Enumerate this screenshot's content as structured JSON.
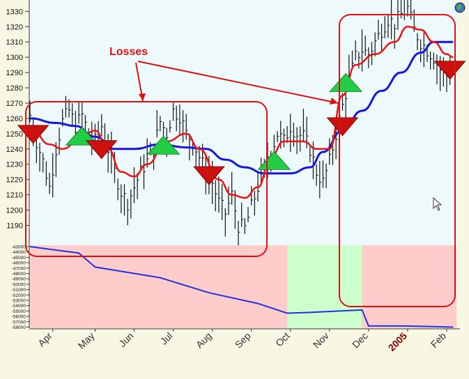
{
  "chart_data": [
    {
      "type": "line",
      "annotation": "Losses",
      "months": [
        "Apr",
        "May",
        "Jun",
        "Jul",
        "Aug",
        "Sep",
        "Oct",
        "Nov",
        "Dec",
        "2005",
        "Feb"
      ],
      "price_axis": {
        "ticks": [
          1190,
          1200,
          1210,
          1220,
          1230,
          1240,
          1250,
          1260,
          1270,
          1280,
          1290,
          1300,
          1310,
          1320,
          1330
        ],
        "range": [
          1177,
          1337
        ]
      },
      "ohlc_close_approx": [
        [
          0,
          1262
        ],
        [
          2,
          1245
        ],
        [
          4,
          1232
        ],
        [
          6,
          1215
        ],
        [
          8,
          1240
        ],
        [
          10,
          1258
        ],
        [
          12,
          1265
        ],
        [
          14,
          1255
        ],
        [
          16,
          1262
        ],
        [
          18,
          1250
        ],
        [
          20,
          1245
        ],
        [
          22,
          1255
        ],
        [
          24,
          1240
        ],
        [
          26,
          1225
        ],
        [
          28,
          1212
        ],
        [
          30,
          1205
        ],
        [
          32,
          1215
        ],
        [
          34,
          1225
        ],
        [
          36,
          1232
        ],
        [
          38,
          1240
        ],
        [
          40,
          1258
        ],
        [
          42,
          1250
        ],
        [
          44,
          1265
        ],
        [
          46,
          1262
        ],
        [
          48,
          1250
        ],
        [
          50,
          1245
        ],
        [
          52,
          1235
        ],
        [
          54,
          1225
        ],
        [
          56,
          1218
        ],
        [
          58,
          1205
        ],
        [
          60,
          1198
        ],
        [
          62,
          1210
        ],
        [
          64,
          1190
        ],
        [
          66,
          1188
        ],
        [
          68,
          1202
        ],
        [
          70,
          1215
        ],
        [
          72,
          1225
        ],
        [
          74,
          1238
        ],
        [
          76,
          1250
        ],
        [
          78,
          1245
        ],
        [
          80,
          1255
        ],
        [
          82,
          1250
        ],
        [
          84,
          1248
        ],
        [
          86,
          1240
        ],
        [
          88,
          1225
        ],
        [
          90,
          1218
        ],
        [
          92,
          1232
        ],
        [
          94,
          1250
        ],
        [
          96,
          1268
        ],
        [
          98,
          1285
        ],
        [
          100,
          1300
        ],
        [
          102,
          1305
        ],
        [
          104,
          1302
        ],
        [
          106,
          1310
        ],
        [
          108,
          1318
        ],
        [
          110,
          1325
        ],
        [
          112,
          1322
        ],
        [
          114,
          1328
        ],
        [
          116,
          1332
        ],
        [
          118,
          1318
        ],
        [
          120,
          1310
        ],
        [
          122,
          1305
        ],
        [
          124,
          1300
        ],
        [
          126,
          1292
        ],
        [
          128,
          1290
        ],
        [
          130,
          1295
        ]
      ],
      "ma_fast_red": [
        [
          0,
          1255
        ],
        [
          6,
          1243
        ],
        [
          10,
          1240
        ],
        [
          16,
          1248
        ],
        [
          20,
          1252
        ],
        [
          24,
          1240
        ],
        [
          28,
          1225
        ],
        [
          32,
          1222
        ],
        [
          36,
          1230
        ],
        [
          42,
          1245
        ],
        [
          48,
          1250
        ],
        [
          52,
          1240
        ],
        [
          58,
          1220
        ],
        [
          62,
          1210
        ],
        [
          66,
          1208
        ],
        [
          70,
          1215
        ],
        [
          74,
          1235
        ],
        [
          78,
          1245
        ],
        [
          84,
          1245
        ],
        [
          88,
          1240
        ],
        [
          92,
          1240
        ],
        [
          96,
          1275
        ],
        [
          100,
          1295
        ],
        [
          106,
          1302
        ],
        [
          112,
          1310
        ],
        [
          116,
          1320
        ],
        [
          120,
          1318
        ],
        [
          124,
          1310
        ],
        [
          128,
          1302
        ],
        [
          130,
          1300
        ]
      ],
      "ma_slow_blue": [
        [
          0,
          1260
        ],
        [
          8,
          1257
        ],
        [
          14,
          1255
        ],
        [
          20,
          1248
        ],
        [
          26,
          1240
        ],
        [
          32,
          1240
        ],
        [
          40,
          1243
        ],
        [
          48,
          1241
        ],
        [
          54,
          1240
        ],
        [
          60,
          1233
        ],
        [
          66,
          1228
        ],
        [
          72,
          1224
        ],
        [
          80,
          1224
        ],
        [
          86,
          1228
        ],
        [
          90,
          1238
        ],
        [
          96,
          1252
        ],
        [
          102,
          1265
        ],
        [
          108,
          1278
        ],
        [
          114,
          1290
        ],
        [
          120,
          1303
        ],
        [
          124,
          1310
        ],
        [
          130,
          1310
        ]
      ],
      "signals_buy": [
        [
          16,
          1248
        ],
        [
          41,
          1242
        ],
        [
          75,
          1232
        ],
        [
          97,
          1283
        ]
      ],
      "signals_sell": [
        [
          1,
          1250
        ],
        [
          22,
          1240
        ],
        [
          55,
          1223
        ],
        [
          96,
          1255
        ],
        [
          129,
          1292
        ]
      ]
    },
    {
      "type": "area",
      "equity_axis": {
        "ticks": [
          -43000,
          -44000,
          -45000,
          -46000,
          -47000,
          -48000,
          -49000,
          -50000,
          -51000,
          -52000,
          -53000,
          -54000,
          -55000,
          -56000,
          -57000,
          -58000
        ],
        "labels": [
          "-43000",
          "-44000",
          "-45000",
          "-46000",
          "-47000",
          "-48000",
          "-49000",
          "-50000",
          "-51000",
          "-52000",
          "-53000",
          "-54000",
          "-55000",
          "-56000",
          "-57000",
          "-58000"
        ],
        "range": [
          -43000,
          -58200
        ]
      },
      "equity_curve": [
        [
          0,
          -43000
        ],
        [
          15,
          -44200
        ],
        [
          20,
          -46800
        ],
        [
          40,
          -48800
        ],
        [
          55,
          -51600
        ],
        [
          70,
          -53600
        ],
        [
          79,
          -55400
        ],
        [
          85,
          -55300
        ],
        [
          102,
          -54800
        ],
        [
          104,
          -57800
        ],
        [
          115,
          -57800
        ],
        [
          130,
          -58000
        ]
      ],
      "shade_regions": [
        {
          "from": 0,
          "to": 79,
          "color": "#ffcccc"
        },
        {
          "from": 79,
          "to": 102,
          "color": "#ccffcc"
        },
        {
          "from": 102,
          "to": 131,
          "color": "#ffcccc"
        }
      ]
    }
  ],
  "colors": {
    "price_bars": "#111111",
    "fast_ma": "#ee1111",
    "slow_ma": "#1515dd",
    "equity": "#2233dd",
    "buy": "#22cc44",
    "sell": "#cc1111",
    "loss_box": "#dd1111",
    "accent_year": "#8b0000"
  },
  "icons": {
    "corner": "globe-icon",
    "cursor": "mouse-cursor-icon"
  }
}
